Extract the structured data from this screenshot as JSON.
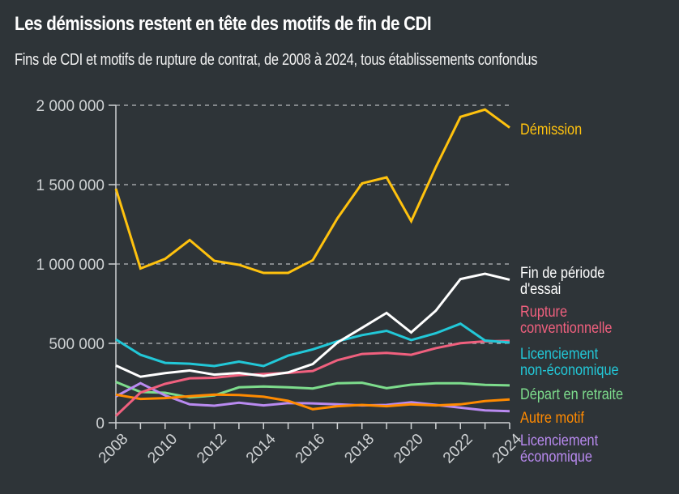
{
  "header": {
    "title": "Les démissions restent en tête des motifs de fin de CDI",
    "subtitle": "Fins de CDI et motifs de rupture de contrat, de 2008 à 2024, tous établissements confondus"
  },
  "chart_data": {
    "type": "line",
    "title": "Les démissions restent en tête des motifs de fin de CDI",
    "subtitle": "Fins de CDI et motifs de rupture de contrat, de 2008 à 2024, tous établissements confondus",
    "xlabel": "",
    "ylabel": "",
    "x": [
      2008,
      2009,
      2010,
      2011,
      2012,
      2013,
      2014,
      2015,
      2016,
      2017,
      2018,
      2019,
      2020,
      2021,
      2022,
      2023,
      2024
    ],
    "xlim": [
      2008,
      2024
    ],
    "ylim": [
      0,
      2000000
    ],
    "x_ticks": [
      2008,
      2010,
      2012,
      2014,
      2016,
      2018,
      2020,
      2022,
      2024
    ],
    "x_tick_labels": [
      "2008",
      "2010",
      "2012",
      "2014",
      "2016",
      "2018",
      "2020",
      "2022",
      "2024"
    ],
    "y_ticks": [
      0,
      500000,
      1000000,
      1500000,
      2000000
    ],
    "y_tick_labels": [
      "0",
      "500 000",
      "1 000 000",
      "1 500 000",
      "2 000 000"
    ],
    "grid": "horizontal-dashed",
    "legend": "direct-labels-right",
    "series": [
      {
        "name": "Démission",
        "label_lines": [
          "Démission"
        ],
        "color": "#ffc20e",
        "values": [
          1475000,
          972000,
          1032000,
          1151000,
          1020000,
          995000,
          944000,
          944000,
          1024000,
          1288000,
          1508000,
          1546000,
          1270000,
          1610000,
          1927000,
          1973000,
          1859000
        ]
      },
      {
        "name": "Fin de période d'essai",
        "label_lines": [
          "Fin de période",
          "d'essai"
        ],
        "color": "#ffffff",
        "values": [
          360000,
          290000,
          312000,
          329000,
          303000,
          314000,
          295000,
          317000,
          370000,
          505000,
          598000,
          692000,
          569000,
          706000,
          905000,
          939000,
          901000
        ]
      },
      {
        "name": "Rupture conventionnelle",
        "label_lines": [
          "Rupture",
          "conventionnelle"
        ],
        "color": "#f0607e",
        "values": [
          43000,
          190000,
          245000,
          280000,
          283000,
          300000,
          307000,
          314000,
          326000,
          394000,
          433000,
          440000,
          428000,
          470000,
          501000,
          513000,
          516000
        ]
      },
      {
        "name": "Licenciement non-économique",
        "label_lines": [
          "Licenciement",
          "non-économique"
        ],
        "color": "#22c8d8",
        "values": [
          525000,
          428000,
          377000,
          372000,
          357000,
          385000,
          357000,
          423000,
          462000,
          513000,
          552000,
          579000,
          521000,
          564000,
          624000,
          518000,
          505000
        ]
      },
      {
        "name": "Départ en retraite",
        "label_lines": [
          "Départ en retraite"
        ],
        "color": "#7ddc8c",
        "values": [
          257000,
          194000,
          189000,
          159000,
          172000,
          223000,
          228000,
          223000,
          216000,
          249000,
          252000,
          218000,
          240000,
          249000,
          249000,
          239000,
          235000
        ]
      },
      {
        "name": "Autre motif",
        "label_lines": [
          "Autre motif"
        ],
        "color": "#ff8a00",
        "values": [
          177000,
          150000,
          155000,
          167000,
          177000,
          175000,
          164000,
          138000,
          85000,
          104000,
          112000,
          104000,
          116000,
          109000,
          116000,
          136000,
          147000
        ]
      },
      {
        "name": "Licenciement économique",
        "label_lines": [
          "Licenciement",
          "économique"
        ],
        "color": "#b98af0",
        "values": [
          166000,
          249000,
          172000,
          116000,
          107000,
          126000,
          109000,
          124000,
          122000,
          116000,
          109000,
          112000,
          129000,
          112000,
          95000,
          78000,
          73000
        ]
      }
    ]
  }
}
